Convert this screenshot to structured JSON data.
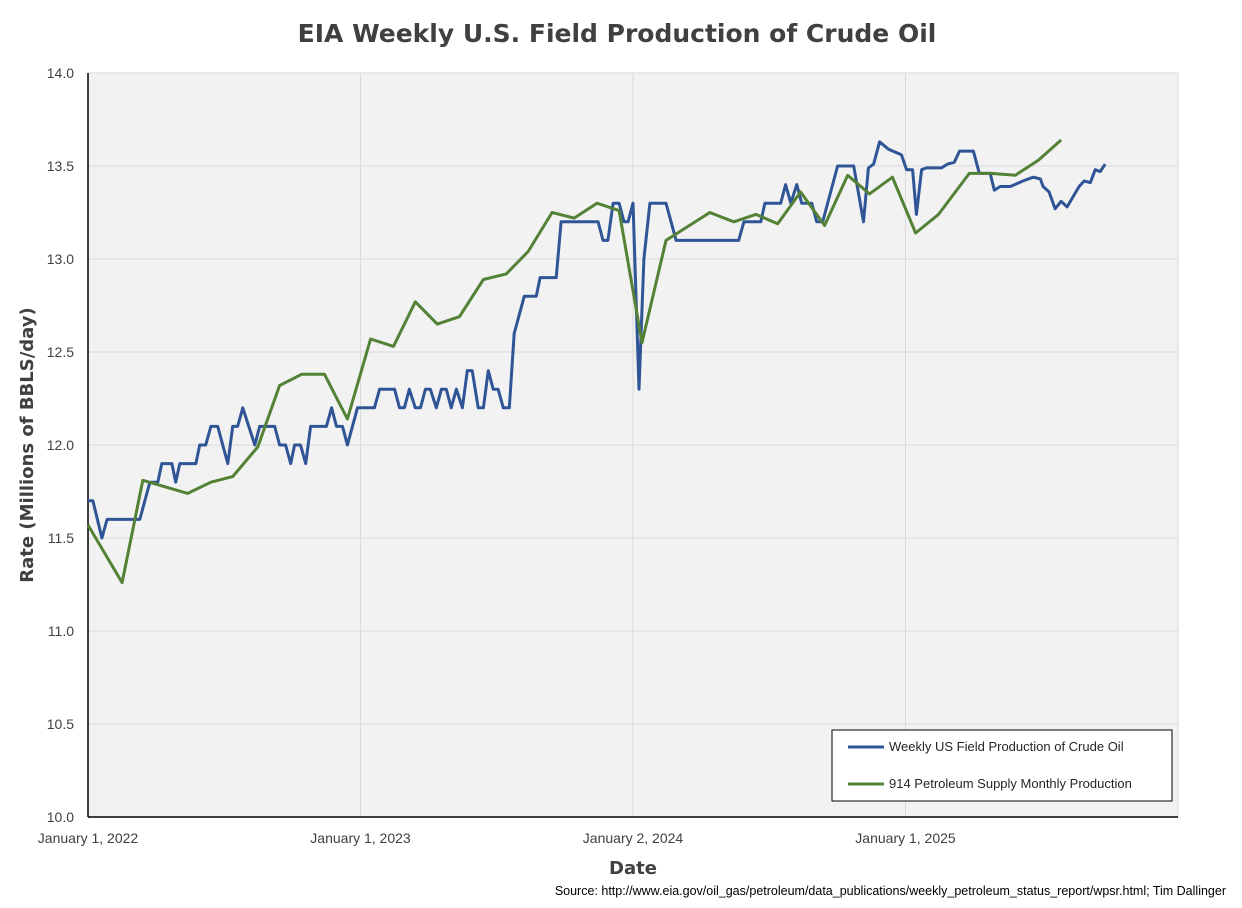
{
  "chart_data": {
    "type": "line",
    "title": "EIA Weekly U.S. Field Production of Crude Oil",
    "xlabel": "Date",
    "ylabel": "Rate (Millions of BBLS/day)",
    "source": "Source: http://www.eia.gov/oil_gas/petroleum/data_publications/weekly_petroleum_status_report/wpsr.html; Tim Dallinger",
    "xlim": [
      2022.0,
      2026.0
    ],
    "ylim": [
      10.0,
      14.0
    ],
    "x_unit": "decimal year",
    "yticks": [
      "10.0",
      "10.5",
      "11.0",
      "11.5",
      "12.0",
      "12.5",
      "13.0",
      "13.5",
      "14.0"
    ],
    "xticks": [
      {
        "value": 2022.0,
        "label": "January 1, 2022"
      },
      {
        "value": 2023.0,
        "label": "January 1, 2023"
      },
      {
        "value": 2024.0,
        "label": "January 2, 2024"
      },
      {
        "value": 2025.0,
        "label": "January 1, 2025"
      }
    ],
    "grid": true,
    "legend_position": "bottom-right",
    "series": [
      {
        "name": "Weekly US Field Production of Crude Oil",
        "color": "#2f5597",
        "points": [
          [
            2022.0,
            11.7
          ],
          [
            2022.018,
            11.7
          ],
          [
            2022.051,
            11.5
          ],
          [
            2022.07,
            11.6
          ],
          [
            2022.19,
            11.6
          ],
          [
            2022.227,
            11.8
          ],
          [
            2022.256,
            11.8
          ],
          [
            2022.271,
            11.9
          ],
          [
            2022.308,
            11.9
          ],
          [
            2022.322,
            11.8
          ],
          [
            2022.337,
            11.9
          ],
          [
            2022.396,
            11.9
          ],
          [
            2022.41,
            12.0
          ],
          [
            2022.432,
            12.0
          ],
          [
            2022.451,
            12.1
          ],
          [
            2022.476,
            12.1
          ],
          [
            2022.513,
            11.9
          ],
          [
            2022.531,
            12.1
          ],
          [
            2022.549,
            12.1
          ],
          [
            2022.568,
            12.2
          ],
          [
            2022.612,
            12.0
          ],
          [
            2022.63,
            12.1
          ],
          [
            2022.685,
            12.1
          ],
          [
            2022.703,
            12.0
          ],
          [
            2022.725,
            12.0
          ],
          [
            2022.744,
            11.9
          ],
          [
            2022.758,
            12.0
          ],
          [
            2022.78,
            12.0
          ],
          [
            2022.799,
            11.9
          ],
          [
            2022.817,
            12.1
          ],
          [
            2022.875,
            12.1
          ],
          [
            2022.894,
            12.2
          ],
          [
            2022.912,
            12.1
          ],
          [
            2022.934,
            12.1
          ],
          [
            2022.952,
            12.0
          ],
          [
            2022.989,
            12.2
          ],
          [
            2023.051,
            12.2
          ],
          [
            2023.07,
            12.3
          ],
          [
            2023.125,
            12.3
          ],
          [
            2023.143,
            12.2
          ],
          [
            2023.161,
            12.2
          ],
          [
            2023.179,
            12.3
          ],
          [
            2023.201,
            12.2
          ],
          [
            2023.22,
            12.2
          ],
          [
            2023.238,
            12.3
          ],
          [
            2023.256,
            12.3
          ],
          [
            2023.278,
            12.2
          ],
          [
            2023.297,
            12.3
          ],
          [
            2023.315,
            12.3
          ],
          [
            2023.333,
            12.2
          ],
          [
            2023.352,
            12.3
          ],
          [
            2023.374,
            12.2
          ],
          [
            2023.392,
            12.4
          ],
          [
            2023.41,
            12.4
          ],
          [
            2023.432,
            12.2
          ],
          [
            2023.451,
            12.2
          ],
          [
            2023.469,
            12.4
          ],
          [
            2023.487,
            12.3
          ],
          [
            2023.505,
            12.3
          ],
          [
            2023.524,
            12.2
          ],
          [
            2023.546,
            12.2
          ],
          [
            2023.564,
            12.6
          ],
          [
            2023.601,
            12.8
          ],
          [
            2023.645,
            12.8
          ],
          [
            2023.659,
            12.9
          ],
          [
            2023.718,
            12.9
          ],
          [
            2023.736,
            13.2
          ],
          [
            2023.872,
            13.2
          ],
          [
            2023.89,
            13.1
          ],
          [
            2023.908,
            13.1
          ],
          [
            2023.927,
            13.3
          ],
          [
            2023.949,
            13.3
          ],
          [
            2023.967,
            13.2
          ],
          [
            2023.982,
            13.2
          ],
          [
            2024.0,
            13.3
          ],
          [
            2024.022,
            12.3
          ],
          [
            2024.04,
            13.0
          ],
          [
            2024.062,
            13.3
          ],
          [
            2024.121,
            13.3
          ],
          [
            2024.158,
            13.1
          ],
          [
            2024.388,
            13.1
          ],
          [
            2024.407,
            13.2
          ],
          [
            2024.469,
            13.2
          ],
          [
            2024.484,
            13.3
          ],
          [
            2024.542,
            13.3
          ],
          [
            2024.56,
            13.4
          ],
          [
            2024.579,
            13.3
          ],
          [
            2024.601,
            13.4
          ],
          [
            2024.619,
            13.3
          ],
          [
            2024.656,
            13.3
          ],
          [
            2024.674,
            13.2
          ],
          [
            2024.696,
            13.2
          ],
          [
            2024.751,
            13.5
          ],
          [
            2024.81,
            13.5
          ],
          [
            2024.846,
            13.2
          ],
          [
            2024.864,
            13.49
          ],
          [
            2024.883,
            13.51
          ],
          [
            2024.905,
            13.63
          ],
          [
            2024.938,
            13.59
          ],
          [
            2024.985,
            13.56
          ],
          [
            2025.004,
            13.48
          ],
          [
            2025.026,
            13.48
          ],
          [
            2025.04,
            13.24
          ],
          [
            2025.059,
            13.48
          ],
          [
            2025.077,
            13.49
          ],
          [
            2025.132,
            13.49
          ],
          [
            2025.154,
            13.51
          ],
          [
            2025.179,
            13.52
          ],
          [
            2025.198,
            13.58
          ],
          [
            2025.234,
            13.58
          ],
          [
            2025.249,
            13.58
          ],
          [
            2025.271,
            13.46
          ],
          [
            2025.286,
            13.46
          ],
          [
            2025.311,
            13.46
          ],
          [
            2025.326,
            13.37
          ],
          [
            2025.348,
            13.39
          ],
          [
            2025.385,
            13.39
          ],
          [
            2025.432,
            13.42
          ],
          [
            2025.469,
            13.44
          ],
          [
            2025.495,
            13.43
          ],
          [
            2025.505,
            13.39
          ],
          [
            2025.527,
            13.36
          ],
          [
            2025.549,
            13.27
          ],
          [
            2025.571,
            13.31
          ],
          [
            2025.593,
            13.28
          ],
          [
            2025.637,
            13.39
          ],
          [
            2025.656,
            13.42
          ],
          [
            2025.678,
            13.41
          ],
          [
            2025.696,
            13.48
          ],
          [
            2025.714,
            13.47
          ],
          [
            2025.733,
            13.51
          ]
        ]
      },
      {
        "name": "914 Petroleum Supply Monthly Production",
        "color": "#538135",
        "points": [
          [
            2022.0,
            11.57
          ],
          [
            2022.125,
            11.26
          ],
          [
            2022.201,
            11.81
          ],
          [
            2022.366,
            11.74
          ],
          [
            2022.451,
            11.8
          ],
          [
            2022.531,
            11.83
          ],
          [
            2022.623,
            11.99
          ],
          [
            2022.703,
            12.32
          ],
          [
            2022.784,
            12.38
          ],
          [
            2022.868,
            12.38
          ],
          [
            2022.952,
            12.14
          ],
          [
            2023.037,
            12.57
          ],
          [
            2023.121,
            12.53
          ],
          [
            2023.201,
            12.77
          ],
          [
            2023.282,
            12.65
          ],
          [
            2023.363,
            12.69
          ],
          [
            2023.451,
            12.89
          ],
          [
            2023.535,
            12.92
          ],
          [
            2023.615,
            13.04
          ],
          [
            2023.703,
            13.25
          ],
          [
            2023.784,
            13.22
          ],
          [
            2023.868,
            13.3
          ],
          [
            2023.949,
            13.26
          ],
          [
            2024.033,
            12.55
          ],
          [
            2024.121,
            13.1
          ],
          [
            2024.282,
            13.25
          ],
          [
            2024.37,
            13.2
          ],
          [
            2024.451,
            13.24
          ],
          [
            2024.531,
            13.19
          ],
          [
            2024.615,
            13.36
          ],
          [
            2024.703,
            13.18
          ],
          [
            2024.788,
            13.45
          ],
          [
            2024.868,
            13.35
          ],
          [
            2024.952,
            13.44
          ],
          [
            2025.037,
            13.14
          ],
          [
            2025.121,
            13.24
          ],
          [
            2025.234,
            13.46
          ],
          [
            2025.315,
            13.46
          ],
          [
            2025.403,
            13.45
          ],
          [
            2025.487,
            13.53
          ],
          [
            2025.571,
            13.64
          ]
        ]
      }
    ]
  }
}
